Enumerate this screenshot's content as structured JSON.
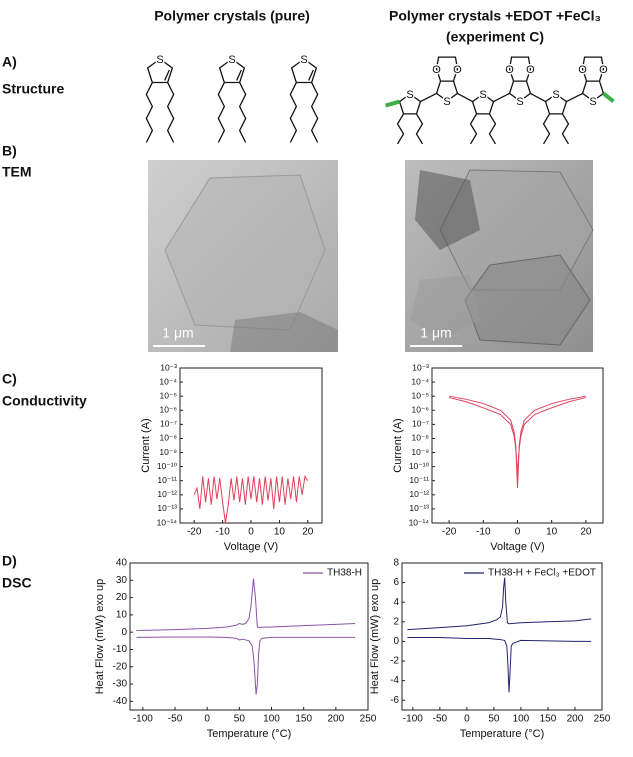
{
  "headers": {
    "pure": "Polymer crystals (pure)",
    "doped": "Polymer crystals +EDOT +FeCl₃",
    "doped_note": "(experiment C)"
  },
  "rows": [
    {
      "letter": "A)",
      "label": "Structure"
    },
    {
      "letter": "B)",
      "label": "TEM"
    },
    {
      "letter": "C)",
      "label": "Conductivity"
    },
    {
      "letter": "D)",
      "label": "DSC"
    }
  ],
  "atoms": {
    "sulfur": "S",
    "oxygen": "O"
  },
  "tem": [
    {
      "scale_bar": "1 μm"
    },
    {
      "scale_bar": "1 μm"
    }
  ],
  "chart_data": [
    {
      "type": "line",
      "xlabel": "Voltage (V)",
      "ylabel": "Current (A)",
      "log_y": true,
      "xlim": [
        -25,
        25
      ],
      "xticks": [
        -20,
        -10,
        0,
        10,
        20
      ],
      "ylim": [
        1e-14,
        0.001
      ],
      "yticks": [
        {
          "value": 0.001,
          "label": "10⁻³"
        },
        {
          "value": 0.0001,
          "label": "10⁻⁴"
        },
        {
          "value": 1e-05,
          "label": "10⁻⁵"
        },
        {
          "value": 1e-06,
          "label": "10⁻⁶"
        },
        {
          "value": 1e-07,
          "label": "10⁻⁷"
        },
        {
          "value": 1e-08,
          "label": "10⁻⁸"
        },
        {
          "value": 1e-09,
          "label": "10⁻⁹"
        },
        {
          "value": 1e-10,
          "label": "10⁻¹⁰"
        },
        {
          "value": 1e-11,
          "label": "10⁻¹¹"
        },
        {
          "value": 1e-12,
          "label": "10⁻¹²"
        },
        {
          "value": 1e-13,
          "label": "10⁻¹³"
        },
        {
          "value": 1e-14,
          "label": "10⁻¹⁴"
        }
      ],
      "series": [
        {
          "color": "#e0405a",
          "x": [
            -20,
            -19,
            -18,
            -17,
            -16,
            -15,
            -14,
            -13,
            -12,
            -11,
            -10,
            -9,
            -8,
            -7,
            -6,
            -5,
            -4,
            -3,
            -2,
            -1,
            0,
            1,
            2,
            3,
            4,
            5,
            6,
            7,
            8,
            9,
            10,
            11,
            12,
            13,
            14,
            15,
            16,
            17,
            18,
            19,
            20
          ],
          "values": [
            1e-12,
            3e-12,
            1e-13,
            2e-11,
            3e-13,
            1.5e-11,
            2e-13,
            2e-11,
            5e-13,
            1.5e-11,
            3e-13,
            1e-14,
            2e-13,
            1.5e-11,
            4e-13,
            2e-11,
            3e-13,
            1.5e-11,
            2e-13,
            2e-11,
            5e-13,
            2e-11,
            3e-13,
            1.5e-11,
            2e-13,
            2e-11,
            4e-13,
            1.5e-11,
            1e-13,
            2e-11,
            3e-13,
            2e-11,
            2e-13,
            1.5e-11,
            5e-13,
            2e-11,
            3e-13,
            2e-11,
            1e-12,
            2e-11,
            1e-11
          ]
        }
      ]
    },
    {
      "type": "line",
      "xlabel": "Voltage (V)",
      "ylabel": "Current (A)",
      "log_y": true,
      "xlim": [
        -25,
        25
      ],
      "xticks": [
        -20,
        -10,
        0,
        10,
        20
      ],
      "ylim": [
        1e-14,
        0.001
      ],
      "yticks": [
        {
          "value": 0.001,
          "label": "10⁻³"
        },
        {
          "value": 0.0001,
          "label": "10⁻⁴"
        },
        {
          "value": 1e-05,
          "label": "10⁻⁵"
        },
        {
          "value": 1e-06,
          "label": "10⁻⁶"
        },
        {
          "value": 1e-07,
          "label": "10⁻⁷"
        },
        {
          "value": 1e-08,
          "label": "10⁻⁸"
        },
        {
          "value": 1e-09,
          "label": "10⁻⁹"
        },
        {
          "value": 1e-10,
          "label": "10⁻¹⁰"
        },
        {
          "value": 1e-11,
          "label": "10⁻¹¹"
        },
        {
          "value": 1e-12,
          "label": "10⁻¹²"
        },
        {
          "value": 1e-13,
          "label": "10⁻¹³"
        },
        {
          "value": 1e-14,
          "label": "10⁻¹⁴"
        }
      ],
      "series": [
        {
          "color": "#e0405a",
          "x": [
            -20,
            -15,
            -10,
            -5,
            -2,
            -1,
            -0.5,
            0,
            0.5,
            1,
            2,
            5,
            10,
            15,
            20
          ],
          "values": [
            1e-05,
            6e-06,
            3e-06,
            1e-06,
            2e-07,
            3e-08,
            3e-09,
            3e-12,
            3e-09,
            3e-08,
            2e-07,
            1e-06,
            3e-06,
            6e-06,
            1e-05
          ]
        },
        {
          "color": "#e0405a",
          "x": [
            -20,
            -15,
            -10,
            -5,
            -2,
            -1,
            -0.5,
            0,
            0.5,
            1,
            2,
            5,
            10,
            15,
            20
          ],
          "values": [
            8e-06,
            4e-06,
            1.5e-06,
            5e-07,
            1e-07,
            1.5e-08,
            2e-09,
            3e-11,
            2e-09,
            1.5e-08,
            1e-07,
            5e-07,
            1.5e-06,
            4e-06,
            8e-06
          ]
        }
      ]
    },
    {
      "type": "line",
      "xlabel": "Temperature (°C)",
      "ylabel": "Heat Flow (mW) exo up",
      "legend": "upper right",
      "xlim": [
        -120,
        250
      ],
      "xticks": [
        -100,
        -50,
        0,
        50,
        100,
        150,
        200,
        250
      ],
      "ylim": [
        -45,
        40
      ],
      "yticks": [
        -40,
        -30,
        -20,
        -10,
        0,
        10,
        20,
        30,
        40
      ],
      "series": [
        {
          "name": "TH38-H",
          "color": "#8a55a8",
          "x": [
            -110,
            -50,
            0,
            30,
            45,
            50,
            55,
            60,
            65,
            68,
            72,
            75,
            78,
            80,
            100,
            150,
            200,
            230
          ],
          "values": [
            1,
            1.5,
            2.2,
            3,
            4,
            5,
            4.5,
            5,
            8,
            15,
            31,
            20,
            3,
            2.8,
            3,
            3.8,
            4.5,
            5
          ]
        },
        {
          "color": "#8a55a8",
          "x": [
            -110,
            -50,
            0,
            30,
            45,
            50,
            55,
            65,
            70,
            73,
            76,
            78,
            80,
            82,
            85,
            100,
            150,
            200,
            230
          ],
          "values": [
            -3,
            -2.8,
            -2.8,
            -3,
            -3.5,
            -4.5,
            -4,
            -5,
            -8,
            -18,
            -36,
            -30,
            -12,
            -5,
            -3.5,
            -3,
            -3,
            -3,
            -3
          ]
        }
      ]
    },
    {
      "type": "line",
      "xlabel": "Temperature (°C)",
      "ylabel": "Heat Flow (mW) exo up",
      "legend": "upper right",
      "xlim": [
        -120,
        250
      ],
      "xticks": [
        -100,
        -50,
        0,
        50,
        100,
        150,
        200,
        250
      ],
      "ylim": [
        -7,
        8
      ],
      "yticks": [
        -6,
        -4,
        -2,
        0,
        2,
        4,
        6,
        8
      ],
      "series": [
        {
          "name": "TH38-H + FeCl₃ +EDOT",
          "color": "#23236e",
          "x": [
            -110,
            -50,
            0,
            40,
            55,
            62,
            66,
            68,
            70,
            72,
            75,
            78,
            100,
            150,
            200,
            230
          ],
          "values": [
            1.2,
            1.4,
            1.6,
            1.9,
            2.2,
            2.5,
            3.5,
            5.5,
            6.5,
            4,
            1.9,
            1.8,
            1.9,
            2,
            2.1,
            2.3
          ]
        },
        {
          "color": "#23236e",
          "x": [
            -110,
            -50,
            0,
            40,
            60,
            70,
            74,
            76,
            78,
            80,
            82,
            85,
            100,
            150,
            200,
            230
          ],
          "values": [
            0.4,
            0.4,
            0.3,
            0.3,
            0.2,
            0.1,
            -0.5,
            -2.5,
            -5.2,
            -3,
            -0.5,
            -0.2,
            0.1,
            0.05,
            0,
            0
          ]
        }
      ]
    }
  ]
}
